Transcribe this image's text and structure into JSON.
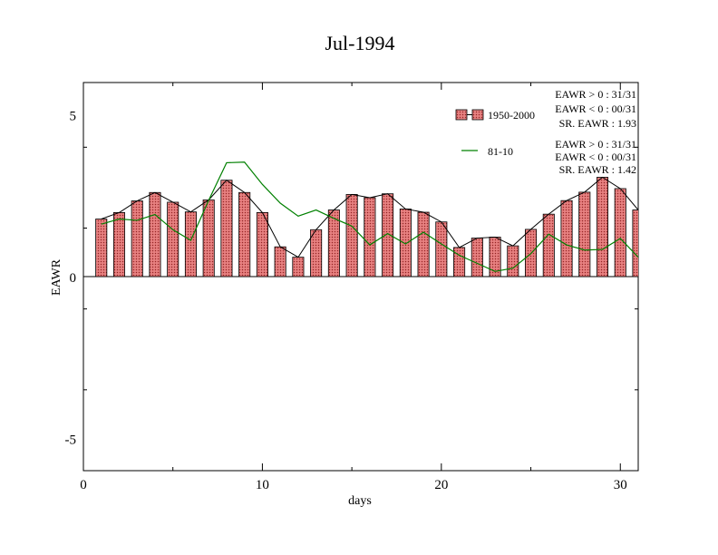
{
  "chart_data": {
    "type": "bar",
    "title": "Jul-1994",
    "xlabel": "days",
    "ylabel": "EAWR",
    "xlim": [
      0,
      31
    ],
    "ylim": [
      -6,
      6
    ],
    "x_ticks": [
      0,
      10,
      20,
      30
    ],
    "y_ticks": [
      -5,
      0,
      5
    ],
    "x": [
      1,
      2,
      3,
      4,
      5,
      6,
      7,
      8,
      9,
      10,
      11,
      12,
      13,
      14,
      15,
      16,
      17,
      18,
      19,
      20,
      21,
      22,
      23,
      24,
      25,
      26,
      27,
      28,
      29,
      30,
      31
    ],
    "series": [
      {
        "name": "1950-2000",
        "kind": "bar",
        "color": "#e07070",
        "values": [
          1.78,
          1.98,
          2.34,
          2.6,
          2.3,
          2.0,
          2.37,
          2.98,
          2.6,
          1.98,
          0.92,
          0.6,
          1.45,
          2.06,
          2.54,
          2.44,
          2.56,
          2.09,
          1.99,
          1.69,
          0.9,
          1.19,
          1.22,
          0.95,
          1.46,
          1.93,
          2.35,
          2.61,
          3.07,
          2.72,
          2.06
        ]
      },
      {
        "name": "81-10",
        "kind": "line",
        "color": "#008000",
        "values": [
          1.62,
          1.78,
          1.74,
          1.92,
          1.45,
          1.12,
          2.36,
          3.52,
          3.54,
          2.85,
          2.27,
          1.87,
          2.06,
          1.8,
          1.56,
          0.98,
          1.33,
          1.01,
          1.37,
          1.01,
          0.66,
          0.41,
          0.16,
          0.26,
          0.71,
          1.31,
          0.98,
          0.82,
          0.84,
          1.18,
          0.6
        ]
      }
    ],
    "legend": [
      {
        "label": "1950-2000",
        "stats": [
          "EAWR > 0 : 31/31",
          "EAWR < 0 : 00/31",
          "SR. EAWR :  1.93"
        ]
      },
      {
        "label": "81-10",
        "stats": [
          "EAWR > 0 : 31/31",
          "EAWR < 0 : 00/31",
          "SR. EAWR :  1.42"
        ]
      }
    ],
    "legend_position": "top-right",
    "grid": false
  }
}
